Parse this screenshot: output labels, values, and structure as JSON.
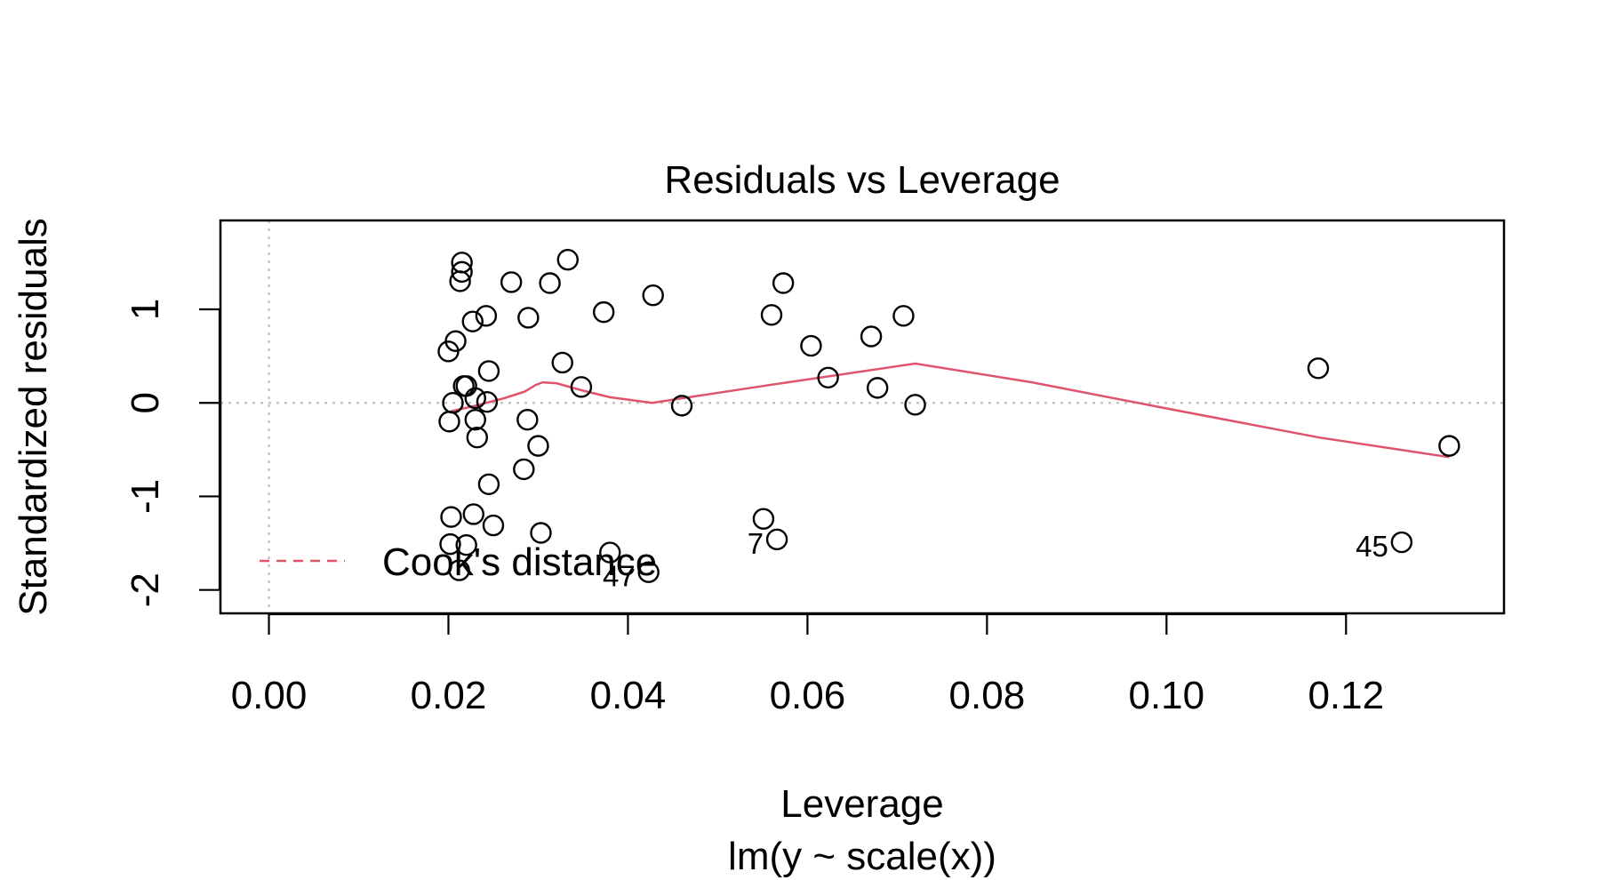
{
  "chart_data": {
    "type": "scatter",
    "title": "Residuals vs Leverage",
    "xlabel": "Leverage",
    "subtitle": "lm(y ~ scale(x))",
    "ylabel": "Standardized residuals",
    "xlim": [
      -0.0054,
      0.1376
    ],
    "ylim": [
      -2.25,
      1.95
    ],
    "xticks": [
      0.0,
      0.02,
      0.04,
      0.06,
      0.08,
      0.1,
      0.12
    ],
    "xtick_labels": [
      "0.00",
      "0.02",
      "0.04",
      "0.06",
      "0.08",
      "0.10",
      "0.12"
    ],
    "yticks": [
      -2,
      -1,
      0,
      1
    ],
    "ytick_labels": [
      "-2",
      "-1",
      "0",
      "1"
    ],
    "grid": false,
    "reference_lines": {
      "horizontal": 0,
      "vertical": 0
    },
    "legend": {
      "position": "bottom-left",
      "entries": [
        "Cook's distance"
      ]
    },
    "colors": {
      "points": "#000000",
      "smooth": "#DF536B",
      "reference": "#BEBEBE",
      "cooks": "#DF536B"
    },
    "points": [
      {
        "x": 0.0215,
        "y": 1.5
      },
      {
        "x": 0.0215,
        "y": 1.4
      },
      {
        "x": 0.0213,
        "y": 1.3
      },
      {
        "x": 0.0333,
        "y": 1.53
      },
      {
        "x": 0.027,
        "y": 1.29
      },
      {
        "x": 0.0313,
        "y": 1.28
      },
      {
        "x": 0.0573,
        "y": 1.28
      },
      {
        "x": 0.0428,
        "y": 1.15
      },
      {
        "x": 0.0373,
        "y": 0.97
      },
      {
        "x": 0.056,
        "y": 0.94
      },
      {
        "x": 0.0707,
        "y": 0.93
      },
      {
        "x": 0.0242,
        "y": 0.93
      },
      {
        "x": 0.0289,
        "y": 0.91
      },
      {
        "x": 0.0227,
        "y": 0.87
      },
      {
        "x": 0.0671,
        "y": 0.71
      },
      {
        "x": 0.0208,
        "y": 0.66
      },
      {
        "x": 0.0604,
        "y": 0.61
      },
      {
        "x": 0.02,
        "y": 0.55
      },
      {
        "x": 0.0327,
        "y": 0.43
      },
      {
        "x": 0.1169,
        "y": 0.37
      },
      {
        "x": 0.0245,
        "y": 0.34
      },
      {
        "x": 0.0623,
        "y": 0.27
      },
      {
        "x": 0.0217,
        "y": 0.18
      },
      {
        "x": 0.022,
        "y": 0.18
      },
      {
        "x": 0.0348,
        "y": 0.17
      },
      {
        "x": 0.0678,
        "y": 0.16
      },
      {
        "x": 0.023,
        "y": 0.05
      },
      {
        "x": 0.0243,
        "y": 0.01
      },
      {
        "x": 0.0205,
        "y": 0.0
      },
      {
        "x": 0.046,
        "y": -0.03
      },
      {
        "x": 0.072,
        "y": -0.02
      },
      {
        "x": 0.023,
        "y": -0.18
      },
      {
        "x": 0.0288,
        "y": -0.18
      },
      {
        "x": 0.0201,
        "y": -0.2
      },
      {
        "x": 0.0232,
        "y": -0.37
      },
      {
        "x": 0.03,
        "y": -0.46
      },
      {
        "x": 0.1315,
        "y": -0.46
      },
      {
        "x": 0.0284,
        "y": -0.71
      },
      {
        "x": 0.0245,
        "y": -0.87
      },
      {
        "x": 0.0203,
        "y": -1.22
      },
      {
        "x": 0.0228,
        "y": -1.19
      },
      {
        "x": 0.0551,
        "y": -1.24
      },
      {
        "x": 0.025,
        "y": -1.31
      },
      {
        "x": 0.0303,
        "y": -1.39
      },
      {
        "x": 0.0202,
        "y": -1.51
      },
      {
        "x": 0.022,
        "y": -1.52
      },
      {
        "x": 0.038,
        "y": -1.6
      },
      {
        "x": 0.0566,
        "y": -1.46,
        "label": "7"
      },
      {
        "x": 0.1262,
        "y": -1.49,
        "label": "45"
      },
      {
        "x": 0.0212,
        "y": -1.79
      },
      {
        "x": 0.0423,
        "y": -1.81,
        "label": "47"
      }
    ],
    "smooth_line": {
      "x": [
        0.0203,
        0.023,
        0.0262,
        0.0285,
        0.0297,
        0.0305,
        0.032,
        0.035,
        0.038,
        0.0427,
        0.055,
        0.072,
        0.085,
        0.1,
        0.117,
        0.1315
      ],
      "y": [
        -0.09,
        -0.03,
        0.05,
        0.12,
        0.19,
        0.22,
        0.21,
        0.13,
        0.06,
        0.0,
        0.18,
        0.42,
        0.22,
        -0.06,
        -0.37,
        -0.58
      ]
    }
  }
}
